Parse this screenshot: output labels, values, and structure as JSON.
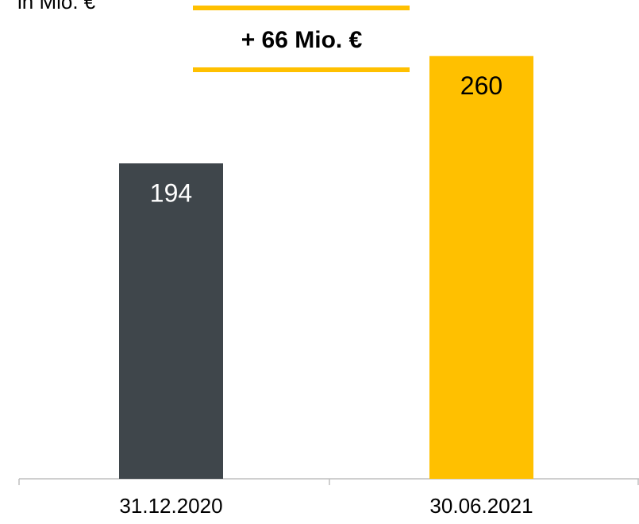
{
  "chart_data": {
    "type": "bar",
    "unit_label": "in Mio. €",
    "annotation": "+ 66 Mio. €",
    "categories": [
      "31.12.2020",
      "30.06.2021"
    ],
    "values": [
      194,
      260
    ],
    "colors": [
      "#3f464b",
      "#ffc000"
    ],
    "ylim": [
      0,
      294
    ]
  }
}
